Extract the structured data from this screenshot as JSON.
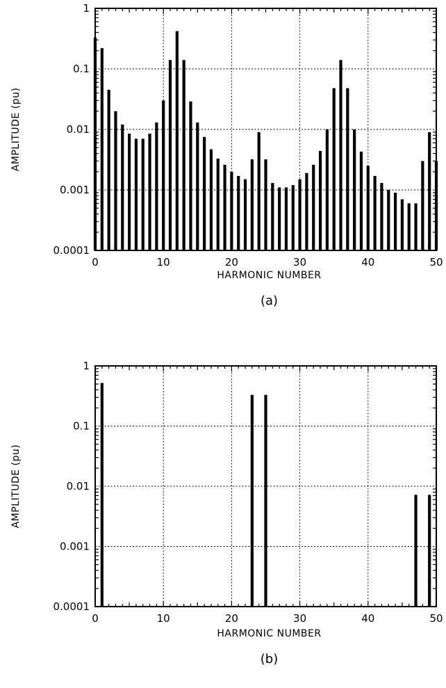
{
  "chart_data": [
    {
      "type": "bar",
      "xlabel": "HARMONIC NUMBER",
      "ylabel": "AMPLITUDE (pu)",
      "caption": "(a)",
      "xlim": [
        0,
        50
      ],
      "ylim": [
        0.0001,
        1
      ],
      "yscale": "log",
      "grid": true,
      "x_tick_labels": [
        "0",
        "10",
        "20",
        "30",
        "40",
        "50"
      ],
      "y_tick_labels": [
        "1",
        "0.1",
        "0.01",
        "0.001",
        "0.0001"
      ],
      "x": [
        0,
        1,
        2,
        3,
        4,
        5,
        6,
        7,
        8,
        9,
        10,
        11,
        12,
        13,
        14,
        15,
        16,
        17,
        18,
        19,
        20,
        21,
        22,
        23,
        24,
        25,
        26,
        27,
        28,
        29,
        30,
        31,
        32,
        33,
        34,
        35,
        36,
        37,
        38,
        39,
        40,
        41,
        42,
        43,
        44,
        45,
        46,
        47,
        48,
        49,
        50
      ],
      "values": [
        0.33,
        0.22,
        0.045,
        0.02,
        0.012,
        0.0085,
        0.007,
        0.007,
        0.0085,
        0.013,
        0.03,
        0.14,
        0.42,
        0.14,
        0.029,
        0.013,
        0.0075,
        0.0047,
        0.0033,
        0.0026,
        0.002,
        0.0017,
        0.0015,
        0.0032,
        0.009,
        0.0032,
        0.0013,
        0.0011,
        0.0011,
        0.0012,
        0.0015,
        0.0019,
        0.0026,
        0.0044,
        0.01,
        0.048,
        0.14,
        0.048,
        0.01,
        0.0043,
        0.0025,
        0.0017,
        0.0013,
        0.001,
        0.0009,
        0.0007,
        0.0006,
        0.0006,
        0.003,
        0.009,
        0.003
      ]
    },
    {
      "type": "bar",
      "xlabel": "HARMONIC NUMBER",
      "ylabel": "AMPLITUDE (pu)",
      "caption": "(b)",
      "xlim": [
        0,
        50
      ],
      "ylim": [
        0.0001,
        1
      ],
      "yscale": "log",
      "grid": true,
      "x_tick_labels": [
        "0",
        "10",
        "20",
        "30",
        "40",
        "50"
      ],
      "y_tick_labels": [
        "1",
        "0.1",
        "0.01",
        "0.001",
        "0.0001"
      ],
      "x": [
        1,
        23,
        25,
        47,
        49
      ],
      "values": [
        0.52,
        0.33,
        0.33,
        0.0072,
        0.0072
      ]
    }
  ]
}
